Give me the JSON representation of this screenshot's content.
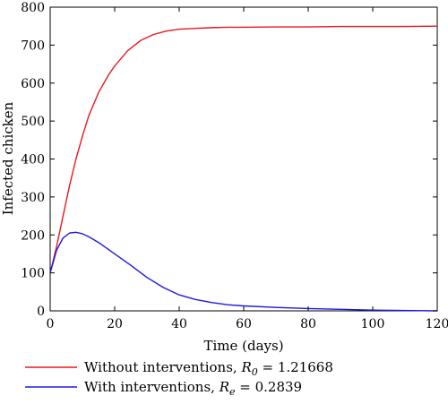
{
  "chart_data": {
    "type": "line",
    "title": "",
    "xlabel": "Time (days)",
    "ylabel": "Infected chicken",
    "xlim": [
      0,
      120
    ],
    "ylim": [
      0,
      800
    ],
    "xticks": [
      0,
      20,
      40,
      60,
      80,
      100,
      120
    ],
    "yticks": [
      0,
      100,
      200,
      300,
      400,
      500,
      600,
      700,
      800
    ],
    "legend_position": "below",
    "series": [
      {
        "name": "Without interventions, R0 = 1.21668",
        "legend_prefix": "Without interventions, ",
        "legend_symbol": "R",
        "legend_subscript": "0",
        "legend_value": " = 1.21668",
        "color": "#e8181e",
        "x": [
          0,
          2,
          4,
          6,
          8,
          10,
          12,
          15,
          18,
          20,
          24,
          28,
          32,
          36,
          40,
          45,
          50,
          55,
          60,
          70,
          80,
          90,
          100,
          110,
          120
        ],
        "y": [
          100,
          170,
          250,
          330,
          400,
          460,
          515,
          575,
          620,
          645,
          685,
          712,
          728,
          737,
          742,
          744,
          746,
          747,
          747,
          748,
          748,
          749,
          749,
          749,
          750
        ]
      },
      {
        "name": "With interventions, Re = 0.2839",
        "legend_prefix": "With interventions, ",
        "legend_symbol": "R",
        "legend_subscript": "e",
        "legend_value": " = 0.2839",
        "color": "#1a1ae6",
        "x": [
          0,
          2,
          4,
          6,
          8,
          10,
          12,
          15,
          18,
          20,
          25,
          30,
          35,
          40,
          45,
          50,
          55,
          60,
          70,
          80,
          90,
          100,
          110,
          120
        ],
        "y": [
          100,
          160,
          192,
          205,
          207,
          203,
          195,
          180,
          162,
          150,
          120,
          88,
          62,
          42,
          30,
          22,
          16,
          13,
          9,
          6,
          4,
          2,
          1,
          0
        ]
      }
    ]
  }
}
